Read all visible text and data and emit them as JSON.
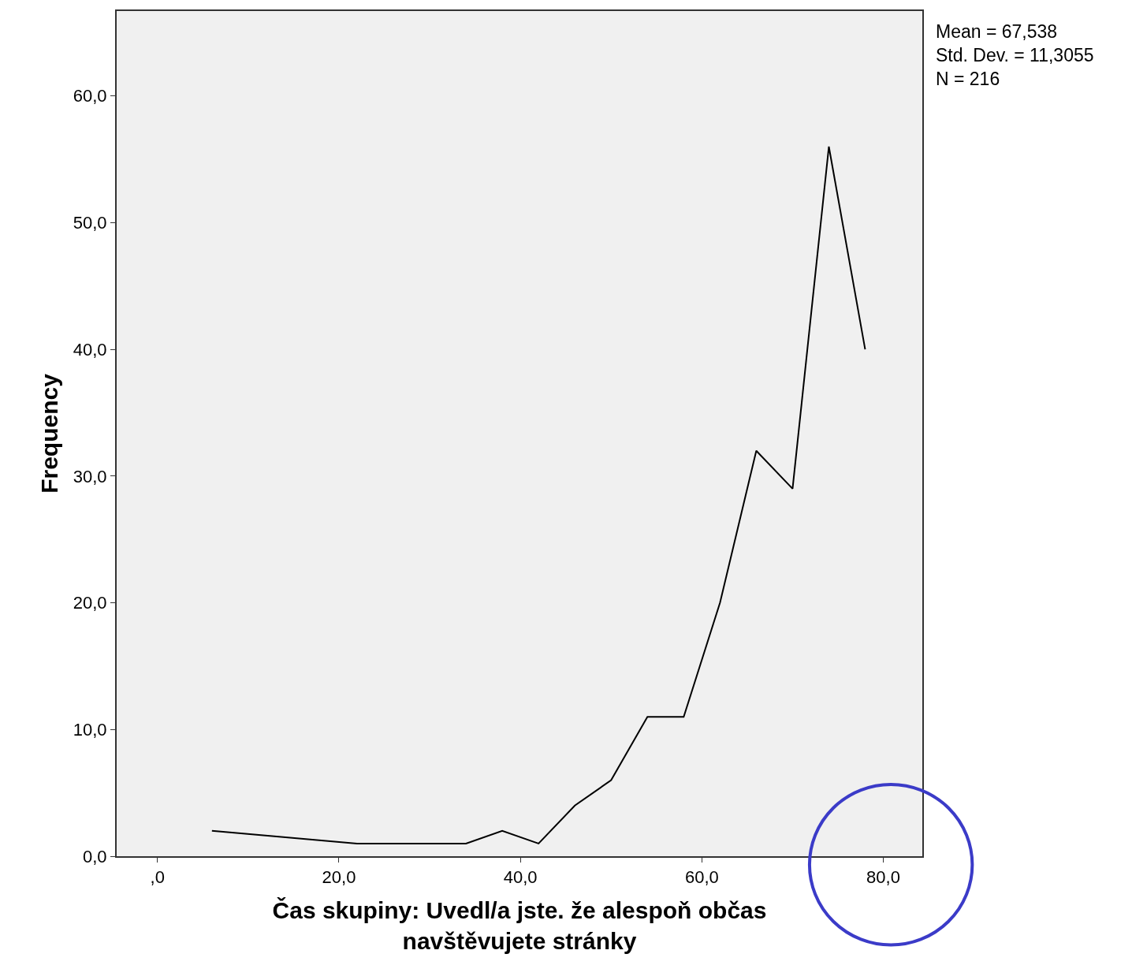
{
  "chart_data": {
    "type": "line",
    "xlabel": "Čas skupiny: Uvedl/a jste. že alespoň občas\nnavštěvujete stránky",
    "ylabel": "Frequency",
    "annotations": [
      "Mean = 67,538\nStd. Dev. = 11,3055\nN = 216"
    ],
    "x": [
      6,
      22,
      34,
      38,
      42,
      46,
      50,
      54,
      58,
      62,
      66,
      70,
      74,
      78
    ],
    "series": [
      {
        "color": "#000000",
        "values": [
          2,
          1,
          1,
          2,
          1,
          4,
          6,
          11,
          11,
          20,
          32,
          29,
          56,
          40
        ]
      }
    ],
    "xlim": [
      -4.5,
      84.3
    ],
    "ylim": [
      0,
      66.7
    ],
    "xticks": [
      {
        "value": 0,
        "label": ",0"
      },
      {
        "value": 20,
        "label": "20,0"
      },
      {
        "value": 40,
        "label": "40,0"
      },
      {
        "value": 60,
        "label": "60,0"
      },
      {
        "value": 80,
        "label": "80,0"
      }
    ],
    "yticks": [
      {
        "value": 0,
        "label": "0,0"
      },
      {
        "value": 10,
        "label": "10,0"
      },
      {
        "value": 20,
        "label": "20,0"
      },
      {
        "value": 30,
        "label": "30,0"
      },
      {
        "value": 40,
        "label": "40,0"
      },
      {
        "value": 50,
        "label": "50,0"
      },
      {
        "value": 60,
        "label": "60,0"
      }
    ],
    "grid": false,
    "marker": "none",
    "line_style": "solid"
  }
}
